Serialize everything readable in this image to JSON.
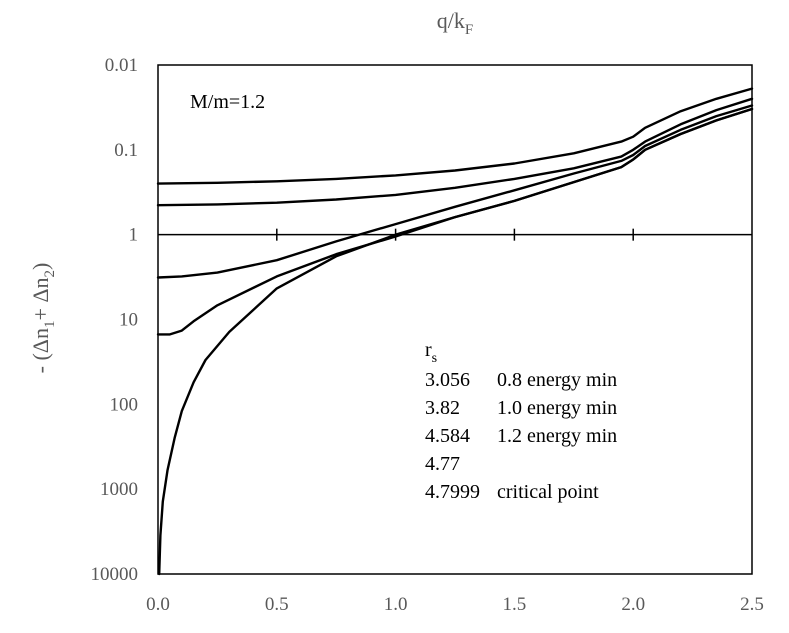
{
  "chart_data": {
    "type": "line",
    "title": "",
    "xlabel": "q/k",
    "xlabel_sub": "F",
    "ylabel_prefix": "- (Δn",
    "ylabel_sub1": "1",
    "ylabel_mid": "+ Δn",
    "ylabel_sub2": "2",
    "ylabel_suffix": ")",
    "xlim": [
      0,
      2.5
    ],
    "ylim": [
      0.01,
      10000
    ],
    "y_scale": "log",
    "y_inverted": true,
    "x_ticks": [
      "0.0",
      "0.5",
      "1.0",
      "1.5",
      "2.0",
      "2.5"
    ],
    "y_ticks": [
      "0.01",
      "0.1",
      "1",
      "10",
      "100",
      "1000",
      "10000"
    ],
    "annotation": "M/m=1.2",
    "legend_title": "r",
    "legend_title_sub": "s",
    "legend_entries": [
      {
        "rs": "3.056",
        "note": "0.8  energy min"
      },
      {
        "rs": "3.82",
        "note": "1.0  energy min"
      },
      {
        "rs": "4.584",
        "note": "1.2  energy min"
      },
      {
        "rs": "4.77",
        "note": ""
      },
      {
        "rs": "4.7999",
        "note": "critical point"
      }
    ],
    "series": [
      {
        "name": "3.056",
        "x": [
          0,
          0.25,
          0.5,
          0.75,
          1.0,
          1.25,
          1.5,
          1.75,
          1.95,
          2.0,
          2.05,
          2.2,
          2.35,
          2.5
        ],
        "y": [
          0.25,
          0.245,
          0.235,
          0.22,
          0.2,
          0.175,
          0.145,
          0.11,
          0.08,
          0.07,
          0.055,
          0.035,
          0.025,
          0.019
        ]
      },
      {
        "name": "3.82",
        "x": [
          0,
          0.25,
          0.5,
          0.75,
          1.0,
          1.25,
          1.5,
          1.75,
          1.95,
          2.0,
          2.05,
          2.2,
          2.35,
          2.5
        ],
        "y": [
          0.45,
          0.44,
          0.42,
          0.385,
          0.34,
          0.28,
          0.22,
          0.165,
          0.12,
          0.1,
          0.08,
          0.05,
          0.034,
          0.025
        ]
      },
      {
        "name": "4.584",
        "x": [
          0,
          0.1,
          0.25,
          0.5,
          0.75,
          1.0,
          1.25,
          1.5,
          1.75,
          1.95,
          2.0,
          2.05,
          2.2,
          2.35,
          2.5
        ],
        "y": [
          3.2,
          3.1,
          2.8,
          2.0,
          1.2,
          0.75,
          0.47,
          0.3,
          0.19,
          0.135,
          0.115,
          0.09,
          0.058,
          0.04,
          0.03
        ]
      },
      {
        "name": "4.77",
        "x": [
          0,
          0.05,
          0.1,
          0.15,
          0.25,
          0.5,
          0.75,
          1.0,
          1.25,
          1.5,
          1.75,
          1.95,
          2.0,
          2.05,
          2.2,
          2.35,
          2.5
        ],
        "y": [
          15,
          15,
          13.5,
          10.5,
          6.8,
          3.1,
          1.7,
          1.05,
          0.62,
          0.4,
          0.24,
          0.16,
          0.13,
          0.1,
          0.065,
          0.045,
          0.033
        ]
      },
      {
        "name": "4.7999",
        "x": [
          0.005,
          0.01,
          0.02,
          0.04,
          0.07,
          0.1,
          0.15,
          0.2,
          0.3,
          0.5,
          0.75,
          1.0,
          1.25,
          1.5,
          1.75,
          1.95,
          2.0,
          2.05,
          2.2,
          2.35,
          2.5
        ],
        "y": [
          10000,
          3500,
          1400,
          600,
          250,
          120,
          55,
          30,
          14,
          4.3,
          1.8,
          1.0,
          0.62,
          0.4,
          0.24,
          0.16,
          0.13,
          0.1,
          0.065,
          0.045,
          0.033
        ]
      }
    ]
  }
}
